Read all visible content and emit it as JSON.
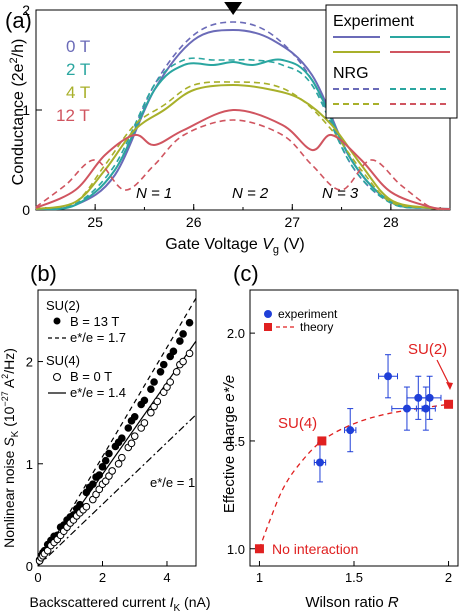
{
  "colors": {
    "0T": "#6b6bb8",
    "2T": "#2aa6a0",
    "4T": "#a8b02a",
    "12T": "#d05560",
    "red": "#e02020",
    "blue": "#1f3fd8"
  },
  "chart_data": [
    {
      "panel": "(a)",
      "type": "line",
      "xlabel": "Gate Voltage V_g (V)",
      "ylabel": "Conductance (2e²/h)",
      "xlim": [
        24.4,
        28.6
      ],
      "ylim": [
        0,
        2
      ],
      "xticks": [
        "25",
        "26",
        "27",
        "28"
      ],
      "yticks": [
        "0",
        "1",
        "2"
      ],
      "field_labels": [
        "0 T",
        "2 T",
        "4 T",
        "12 T"
      ],
      "legend": {
        "experiment": "Experiment",
        "nrg": "NRG",
        "position": "top-right"
      },
      "regions": [
        "N = 1",
        "N = 2",
        "N = 3"
      ],
      "marker_x": 26.4,
      "series": [
        {
          "name": "0 T",
          "kind": "experiment",
          "x": [
            24.4,
            24.8,
            25.2,
            25.6,
            26.0,
            26.4,
            26.8,
            27.2,
            27.6,
            28.0,
            28.4,
            28.6
          ],
          "y": [
            0.01,
            0.05,
            0.35,
            1.2,
            1.7,
            1.8,
            1.7,
            1.35,
            0.5,
            0.08,
            0.02,
            0.01
          ]
        },
        {
          "name": "0 T",
          "kind": "nrg",
          "x": [
            24.4,
            24.8,
            25.2,
            25.6,
            26.0,
            26.4,
            26.8,
            27.2,
            27.6,
            28.0,
            28.4,
            28.6
          ],
          "y": [
            0.01,
            0.06,
            0.4,
            1.25,
            1.75,
            1.88,
            1.75,
            1.3,
            0.45,
            0.07,
            0.02,
            0.01
          ]
        },
        {
          "name": "2 T",
          "kind": "experiment",
          "x": [
            24.4,
            24.8,
            25.2,
            25.6,
            25.9,
            26.2,
            26.4,
            26.6,
            26.9,
            27.2,
            27.6,
            28.0,
            28.4,
            28.6
          ],
          "y": [
            0.01,
            0.05,
            0.4,
            1.2,
            1.45,
            1.45,
            1.48,
            1.45,
            1.5,
            1.3,
            0.5,
            0.08,
            0.02,
            0.01
          ]
        },
        {
          "name": "2 T",
          "kind": "nrg",
          "x": [
            24.4,
            24.8,
            25.2,
            25.6,
            25.9,
            26.2,
            26.4,
            26.6,
            26.9,
            27.2,
            27.6,
            28.0,
            28.4,
            28.6
          ],
          "y": [
            0.01,
            0.06,
            0.45,
            1.25,
            1.5,
            1.5,
            1.5,
            1.5,
            1.45,
            1.25,
            0.45,
            0.07,
            0.02,
            0.01
          ]
        },
        {
          "name": "4 T",
          "kind": "experiment",
          "x": [
            24.4,
            24.8,
            25.1,
            25.4,
            25.7,
            26.0,
            26.4,
            26.8,
            27.1,
            27.4,
            27.7,
            28.0,
            28.4,
            28.6
          ],
          "y": [
            0.01,
            0.08,
            0.4,
            0.8,
            1.0,
            1.2,
            1.25,
            1.2,
            1.1,
            0.85,
            0.45,
            0.1,
            0.02,
            0.01
          ]
        },
        {
          "name": "4 T",
          "kind": "nrg",
          "x": [
            24.4,
            24.8,
            25.1,
            25.4,
            25.7,
            26.0,
            26.4,
            26.8,
            27.1,
            27.4,
            27.7,
            28.0,
            28.4,
            28.6
          ],
          "y": [
            0.01,
            0.08,
            0.45,
            0.85,
            1.05,
            1.25,
            1.28,
            1.25,
            1.1,
            0.8,
            0.4,
            0.08,
            0.02,
            0.01
          ]
        },
        {
          "name": "12 T",
          "kind": "experiment",
          "x": [
            24.4,
            24.8,
            25.1,
            25.4,
            25.6,
            25.9,
            26.4,
            26.9,
            27.2,
            27.4,
            27.7,
            28.0,
            28.4,
            28.6
          ],
          "y": [
            0.02,
            0.2,
            0.55,
            0.75,
            0.65,
            0.8,
            1.0,
            0.85,
            0.6,
            0.75,
            0.5,
            0.18,
            0.03,
            0.01
          ]
        },
        {
          "name": "12 T",
          "kind": "nrg",
          "x": [
            24.4,
            24.7,
            25.0,
            25.3,
            25.6,
            25.9,
            26.4,
            26.9,
            27.2,
            27.5,
            27.8,
            28.1,
            28.4,
            28.6
          ],
          "y": [
            0.03,
            0.25,
            0.5,
            0.2,
            0.45,
            0.75,
            0.9,
            0.75,
            0.45,
            0.2,
            0.5,
            0.25,
            0.03,
            0.01
          ]
        }
      ]
    },
    {
      "panel": "(b)",
      "type": "scatter",
      "xlabel": "Backscattered current I_K (nA)",
      "ylabel": "Nonlinear noise S_K (10⁻²⁷ A²/Hz)",
      "xlim": [
        0,
        4.9
      ],
      "ylim": [
        0,
        2.7
      ],
      "xticks": [
        "0",
        "2",
        "4"
      ],
      "yticks": [
        "0",
        "1",
        "2"
      ],
      "legend": {
        "su2_title": "SU(2)",
        "su2_marker": "B = 13 T",
        "su2_line": "e*/e = 1.7",
        "su4_title": "SU(4)",
        "su4_marker": "B = 0 T",
        "su4_line": "e*/e = 1.4"
      },
      "annotation": "e*/e = 1",
      "series": [
        {
          "name": "B = 13 T",
          "marker": "filled",
          "x": [
            0.05,
            0.1,
            0.15,
            0.2,
            0.3,
            0.4,
            0.5,
            0.6,
            0.7,
            0.8,
            0.9,
            1.0,
            1.1,
            1.2,
            1.3,
            1.5,
            1.6,
            1.7,
            1.8,
            1.9,
            2.0,
            2.1,
            2.2,
            2.4,
            2.5,
            2.6,
            2.8,
            2.9,
            3.0,
            3.2,
            3.3,
            3.5,
            3.6,
            3.8,
            3.9,
            4.1,
            4.2,
            4.4,
            4.5,
            4.7
          ],
          "y": [
            0.06,
            0.1,
            0.13,
            0.15,
            0.21,
            0.25,
            0.29,
            0.3,
            0.38,
            0.4,
            0.45,
            0.48,
            0.5,
            0.56,
            0.6,
            0.72,
            0.77,
            0.8,
            0.87,
            0.89,
            0.97,
            1.03,
            1.1,
            1.17,
            1.21,
            1.25,
            1.35,
            1.42,
            1.46,
            1.58,
            1.62,
            1.73,
            1.8,
            1.9,
            1.97,
            2.05,
            2.1,
            2.2,
            2.27,
            2.38
          ]
        },
        {
          "name": "B = 0 T",
          "marker": "open",
          "x": [
            0.05,
            0.1,
            0.15,
            0.2,
            0.3,
            0.4,
            0.5,
            0.6,
            0.7,
            0.8,
            0.9,
            1.0,
            1.1,
            1.2,
            1.3,
            1.4,
            1.5,
            1.7,
            1.8,
            1.9,
            2.0,
            2.1,
            2.2,
            2.3,
            2.5,
            2.6,
            2.8,
            2.9,
            3.0,
            3.2,
            3.3,
            3.5,
            3.6,
            3.7,
            3.9,
            4.0,
            4.1,
            4.3,
            4.4,
            4.5,
            4.7
          ],
          "y": [
            0.05,
            0.08,
            0.1,
            0.12,
            0.15,
            0.2,
            0.23,
            0.26,
            0.3,
            0.34,
            0.38,
            0.42,
            0.45,
            0.49,
            0.52,
            0.55,
            0.58,
            0.65,
            0.7,
            0.75,
            0.8,
            0.83,
            0.88,
            0.93,
            1.0,
            1.06,
            1.16,
            1.2,
            1.27,
            1.35,
            1.4,
            1.5,
            1.56,
            1.61,
            1.7,
            1.75,
            1.8,
            1.9,
            1.97,
            2.0,
            2.08
          ]
        },
        {
          "name": "e*/e = 1.7",
          "line": "dashed",
          "x": [
            0,
            4.9
          ],
          "y": [
            0,
            2.62
          ]
        },
        {
          "name": "e*/e = 1.4",
          "line": "solid",
          "x": [
            0,
            4.9
          ],
          "y": [
            0,
            2.2
          ]
        },
        {
          "name": "e*/e = 1",
          "line": "dashdot",
          "x": [
            0,
            4.9
          ],
          "y": [
            0,
            1.48
          ]
        }
      ]
    },
    {
      "panel": "(c)",
      "type": "scatter",
      "xlabel": "Wilson ratio R",
      "ylabel": "Effective charge e*/e",
      "xlim": [
        0.95,
        2.05
      ],
      "ylim": [
        0.92,
        2.2
      ],
      "xticks": [
        "1",
        "1.5",
        "2"
      ],
      "yticks": [
        "1.0",
        "1.5",
        "2.0"
      ],
      "legend": {
        "experiment": "experiment",
        "theory": "theory",
        "position": "top-left"
      },
      "annotations": {
        "su2": "SU(2)",
        "su4": "SU(4)",
        "none": "No interaction"
      },
      "series": [
        {
          "name": "experiment",
          "x": [
            1.32,
            1.48,
            1.68,
            1.78,
            1.84,
            1.88,
            1.9
          ],
          "y": [
            1.4,
            1.55,
            1.8,
            1.65,
            1.7,
            1.65,
            1.7
          ],
          "xerr": [
            0.03,
            0.03,
            0.05,
            0.08,
            0.06,
            0.05,
            0.06
          ],
          "yerr": [
            0.09,
            0.1,
            0.1,
            0.1,
            0.1,
            0.1,
            0.1
          ]
        },
        {
          "name": "theory",
          "x": [
            1.0,
            1.33,
            2.0
          ],
          "y": [
            1.0,
            1.5,
            1.67
          ]
        }
      ]
    }
  ]
}
